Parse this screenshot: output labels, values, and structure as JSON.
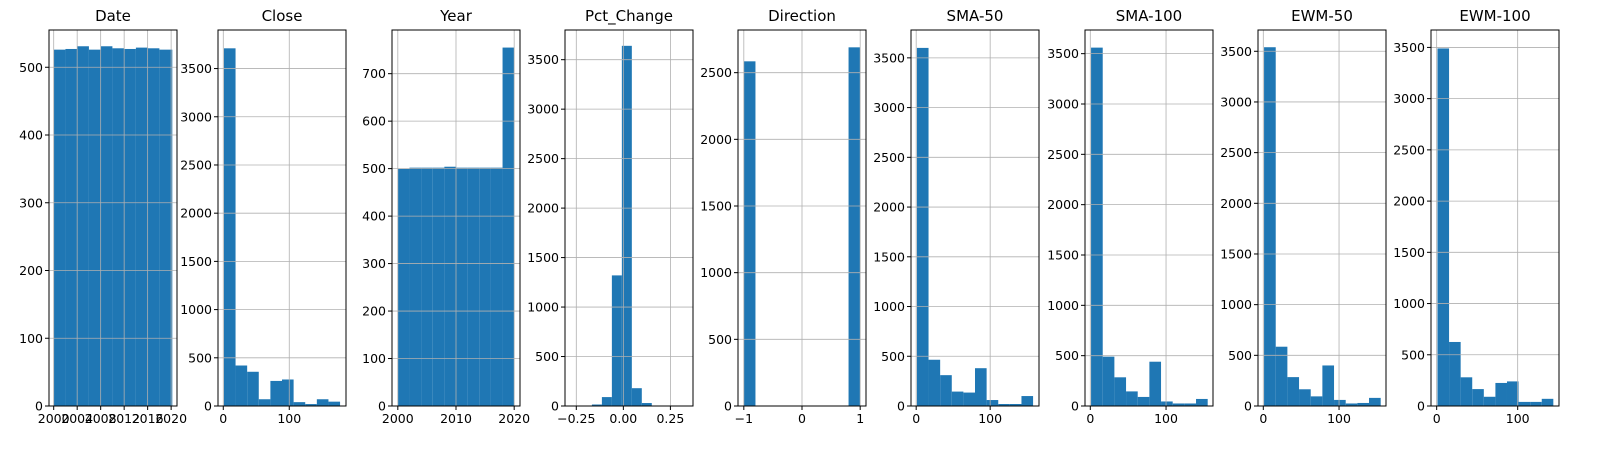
{
  "chart_data": [
    {
      "type": "bar",
      "title": "Date",
      "bar_color": "#1f77b4",
      "grid": true,
      "xlim": [
        1999.2,
        2021.0
      ],
      "ylim": [
        0,
        555
      ],
      "bins": [
        [
          2000.0,
          2002.0,
          526
        ],
        [
          2002.0,
          2004.0,
          527
        ],
        [
          2004.0,
          2006.0,
          531
        ],
        [
          2006.0,
          2008.0,
          526
        ],
        [
          2008.0,
          2010.0,
          531
        ],
        [
          2010.0,
          2012.0,
          528
        ],
        [
          2012.0,
          2014.0,
          527
        ],
        [
          2014.0,
          2016.0,
          529
        ],
        [
          2016.0,
          2018.0,
          528
        ],
        [
          2018.0,
          2020.2,
          526
        ]
      ],
      "xticks": [
        {
          "v": 2000,
          "label": "2000"
        },
        {
          "v": 2004,
          "label": "2004"
        },
        {
          "v": 2008,
          "label": "2008"
        },
        {
          "v": 2012,
          "label": "2012"
        },
        {
          "v": 2016,
          "label": "2016"
        },
        {
          "v": 2020,
          "label": "2020"
        }
      ],
      "yticks": [
        {
          "v": 0,
          "label": "0"
        },
        {
          "v": 100,
          "label": "100"
        },
        {
          "v": 200,
          "label": "200"
        },
        {
          "v": 300,
          "label": "300"
        },
        {
          "v": 400,
          "label": "400"
        },
        {
          "v": 500,
          "label": "500"
        }
      ]
    },
    {
      "type": "bar",
      "title": "Close",
      "bar_color": "#1f77b4",
      "grid": true,
      "xlim": [
        -8,
        186
      ],
      "ylim": [
        0,
        3900
      ],
      "bins": [
        [
          1,
          18.6,
          3710
        ],
        [
          18.6,
          36.2,
          420
        ],
        [
          36.2,
          53.8,
          355
        ],
        [
          53.8,
          71.4,
          70
        ],
        [
          71.4,
          89,
          260
        ],
        [
          89,
          106.6,
          275
        ],
        [
          106.6,
          124.2,
          40
        ],
        [
          124.2,
          141.8,
          20
        ],
        [
          141.8,
          159.4,
          70
        ],
        [
          159.4,
          177,
          45
        ]
      ],
      "xticks": [
        {
          "v": 0,
          "label": "0"
        },
        {
          "v": 100,
          "label": "100"
        }
      ],
      "yticks": [
        {
          "v": 0,
          "label": "0"
        },
        {
          "v": 500,
          "label": "500"
        },
        {
          "v": 1000,
          "label": "1000"
        },
        {
          "v": 1500,
          "label": "1500"
        },
        {
          "v": 2000,
          "label": "2000"
        },
        {
          "v": 2500,
          "label": "2500"
        },
        {
          "v": 3000,
          "label": "3000"
        },
        {
          "v": 3500,
          "label": "3500"
        }
      ]
    },
    {
      "type": "bar",
      "title": "Year",
      "bar_color": "#1f77b4",
      "grid": true,
      "xlim": [
        1999.0,
        2021.0
      ],
      "ylim": [
        0,
        792
      ],
      "bins": [
        [
          2000,
          2002,
          500
        ],
        [
          2002,
          2004,
          502
        ],
        [
          2004,
          2006,
          502
        ],
        [
          2006,
          2008,
          502
        ],
        [
          2008,
          2010,
          504
        ],
        [
          2010,
          2012,
          502
        ],
        [
          2012,
          2014,
          502
        ],
        [
          2014,
          2016,
          502
        ],
        [
          2016,
          2018,
          502
        ],
        [
          2018,
          2020,
          755
        ]
      ],
      "xticks": [
        {
          "v": 2000,
          "label": "2000"
        },
        {
          "v": 2010,
          "label": "2010"
        },
        {
          "v": 2020,
          "label": "2020"
        }
      ],
      "yticks": [
        {
          "v": 0,
          "label": "0"
        },
        {
          "v": 100,
          "label": "100"
        },
        {
          "v": 200,
          "label": "200"
        },
        {
          "v": 300,
          "label": "300"
        },
        {
          "v": 400,
          "label": "400"
        },
        {
          "v": 500,
          "label": "500"
        },
        {
          "v": 600,
          "label": "600"
        },
        {
          "v": 700,
          "label": "700"
        }
      ]
    },
    {
      "type": "bar",
      "title": "Pct_Change",
      "bar_color": "#1f77b4",
      "grid": true,
      "xlim": [
        -0.31,
        0.37
      ],
      "ylim": [
        0,
        3800
      ],
      "bins": [
        [
          -0.22,
          -0.167,
          5
        ],
        [
          -0.167,
          -0.114,
          15
        ],
        [
          -0.114,
          -0.061,
          90
        ],
        [
          -0.061,
          -0.008,
          1320
        ],
        [
          -0.008,
          0.045,
          3640
        ],
        [
          0.045,
          0.098,
          180
        ],
        [
          0.098,
          0.151,
          30
        ],
        [
          0.151,
          0.204,
          5
        ],
        [
          0.204,
          0.257,
          2
        ],
        [
          0.257,
          0.31,
          1
        ]
      ],
      "xticks": [
        {
          "v": -0.25,
          "label": "−0.25"
        },
        {
          "v": 0,
          "label": "0.00"
        },
        {
          "v": 0.25,
          "label": "0.25"
        }
      ],
      "yticks": [
        {
          "v": 0,
          "label": "0"
        },
        {
          "v": 500,
          "label": "500"
        },
        {
          "v": 1000,
          "label": "1000"
        },
        {
          "v": 1500,
          "label": "1500"
        },
        {
          "v": 2000,
          "label": "2000"
        },
        {
          "v": 2500,
          "label": "2500"
        },
        {
          "v": 3000,
          "label": "3000"
        },
        {
          "v": 3500,
          "label": "3500"
        }
      ]
    },
    {
      "type": "bar",
      "title": "Direction",
      "bar_color": "#1f77b4",
      "grid": true,
      "xlim": [
        -1.1,
        1.1
      ],
      "ylim": [
        0,
        2820
      ],
      "bins": [
        [
          -1.0,
          -0.8,
          2585
        ],
        [
          -0.8,
          -0.6,
          0
        ],
        [
          -0.6,
          -0.4,
          0
        ],
        [
          -0.4,
          -0.2,
          0
        ],
        [
          -0.2,
          0.0,
          0
        ],
        [
          0.0,
          0.2,
          0
        ],
        [
          0.2,
          0.4,
          0
        ],
        [
          0.4,
          0.6,
          0
        ],
        [
          0.6,
          0.8,
          0
        ],
        [
          0.8,
          1.0,
          2690
        ]
      ],
      "xticks": [
        {
          "v": -1,
          "label": "−1"
        },
        {
          "v": 0,
          "label": "0"
        },
        {
          "v": 1,
          "label": "1"
        }
      ],
      "yticks": [
        {
          "v": 0,
          "label": "0"
        },
        {
          "v": 500,
          "label": "500"
        },
        {
          "v": 1000,
          "label": "1000"
        },
        {
          "v": 1500,
          "label": "1500"
        },
        {
          "v": 2000,
          "label": "2000"
        },
        {
          "v": 2500,
          "label": "2500"
        }
      ]
    },
    {
      "type": "bar",
      "title": "SMA-50",
      "bar_color": "#1f77b4",
      "grid": true,
      "xlim": [
        -7,
        166
      ],
      "ylim": [
        0,
        3780
      ],
      "bins": [
        [
          1,
          16.7,
          3600
        ],
        [
          16.7,
          32.4,
          465
        ],
        [
          32.4,
          48.1,
          310
        ],
        [
          48.1,
          63.8,
          145
        ],
        [
          63.8,
          79.5,
          135
        ],
        [
          79.5,
          95.2,
          380
        ],
        [
          95.2,
          110.9,
          60
        ],
        [
          110.9,
          126.6,
          20
        ],
        [
          126.6,
          142.3,
          20
        ],
        [
          142.3,
          158,
          100
        ]
      ],
      "xticks": [
        {
          "v": 0,
          "label": "0"
        },
        {
          "v": 100,
          "label": "100"
        }
      ],
      "yticks": [
        {
          "v": 0,
          "label": "0"
        },
        {
          "v": 500,
          "label": "500"
        },
        {
          "v": 1000,
          "label": "1000"
        },
        {
          "v": 1500,
          "label": "1500"
        },
        {
          "v": 2000,
          "label": "2000"
        },
        {
          "v": 2500,
          "label": "2500"
        },
        {
          "v": 3000,
          "label": "3000"
        },
        {
          "v": 3500,
          "label": "3500"
        }
      ]
    },
    {
      "type": "bar",
      "title": "SMA-100",
      "bar_color": "#1f77b4",
      "grid": true,
      "xlim": [
        -7,
        162
      ],
      "ylim": [
        0,
        3735
      ],
      "bins": [
        [
          1,
          16.4,
          3560
        ],
        [
          16.4,
          31.8,
          490
        ],
        [
          31.8,
          47.2,
          285
        ],
        [
          47.2,
          62.6,
          145
        ],
        [
          62.6,
          78,
          90
        ],
        [
          78,
          93.4,
          440
        ],
        [
          93.4,
          108.8,
          45
        ],
        [
          108.8,
          124.2,
          25
        ],
        [
          124.2,
          139.6,
          25
        ],
        [
          139.6,
          155,
          70
        ]
      ],
      "xticks": [
        {
          "v": 0,
          "label": "0"
        },
        {
          "v": 100,
          "label": "100"
        }
      ],
      "yticks": [
        {
          "v": 0,
          "label": "0"
        },
        {
          "v": 500,
          "label": "500"
        },
        {
          "v": 1000,
          "label": "1000"
        },
        {
          "v": 1500,
          "label": "1500"
        },
        {
          "v": 2000,
          "label": "2000"
        },
        {
          "v": 2500,
          "label": "2500"
        },
        {
          "v": 3000,
          "label": "3000"
        },
        {
          "v": 3500,
          "label": "3500"
        }
      ]
    },
    {
      "type": "bar",
      "title": "EWM-50",
      "bar_color": "#1f77b4",
      "grid": true,
      "xlim": [
        -7,
        162
      ],
      "ylim": [
        0,
        3710
      ],
      "bins": [
        [
          1,
          16.4,
          3540
        ],
        [
          16.4,
          31.8,
          585
        ],
        [
          31.8,
          47.2,
          285
        ],
        [
          47.2,
          62.6,
          165
        ],
        [
          62.6,
          78,
          95
        ],
        [
          78,
          93.4,
          400
        ],
        [
          93.4,
          108.8,
          60
        ],
        [
          108.8,
          124.2,
          25
        ],
        [
          124.2,
          139.6,
          30
        ],
        [
          139.6,
          155,
          80
        ]
      ],
      "xticks": [
        {
          "v": 0,
          "label": "0"
        },
        {
          "v": 100,
          "label": "100"
        }
      ],
      "yticks": [
        {
          "v": 0,
          "label": "0"
        },
        {
          "v": 500,
          "label": "500"
        },
        {
          "v": 1000,
          "label": "1000"
        },
        {
          "v": 1500,
          "label": "1500"
        },
        {
          "v": 2000,
          "label": "2000"
        },
        {
          "v": 2500,
          "label": "2500"
        },
        {
          "v": 3000,
          "label": "3000"
        },
        {
          "v": 3500,
          "label": "3500"
        }
      ]
    },
    {
      "type": "bar",
      "title": "EWM-100",
      "bar_color": "#1f77b4",
      "grid": true,
      "xlim": [
        -7,
        151
      ],
      "ylim": [
        0,
        3670
      ],
      "bins": [
        [
          1,
          15.3,
          3490
        ],
        [
          15.3,
          29.6,
          625
        ],
        [
          29.6,
          43.9,
          280
        ],
        [
          43.9,
          58.2,
          165
        ],
        [
          58.2,
          72.5,
          90
        ],
        [
          72.5,
          86.8,
          225
        ],
        [
          86.8,
          101.1,
          240
        ],
        [
          101.1,
          115.4,
          40
        ],
        [
          115.4,
          129.7,
          40
        ],
        [
          129.7,
          144,
          70
        ]
      ],
      "xticks": [
        {
          "v": 0,
          "label": "0"
        },
        {
          "v": 100,
          "label": "100"
        }
      ],
      "yticks": [
        {
          "v": 0,
          "label": "0"
        },
        {
          "v": 500,
          "label": "500"
        },
        {
          "v": 1000,
          "label": "1000"
        },
        {
          "v": 1500,
          "label": "1500"
        },
        {
          "v": 2000,
          "label": "2000"
        },
        {
          "v": 2500,
          "label": "2500"
        },
        {
          "v": 3000,
          "label": "3000"
        },
        {
          "v": 3500,
          "label": "3500"
        }
      ]
    }
  ]
}
